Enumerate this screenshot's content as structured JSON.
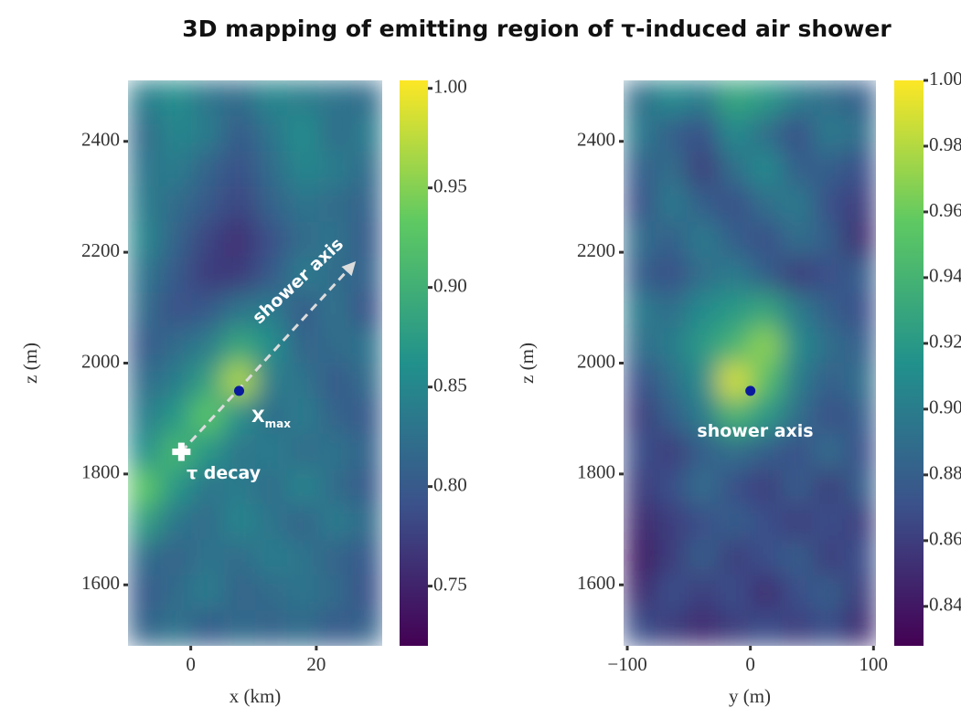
{
  "title": "3D mapping of emitting region of τ-induced air shower",
  "chart_data": [
    {
      "type": "heatmap",
      "colormap": "viridis",
      "xlabel": "x (km)",
      "ylabel": "z (m)",
      "xlim": [
        -10,
        30.5
      ],
      "ylim": [
        1490,
        2510
      ],
      "xticks": [
        0,
        20
      ],
      "yticks": [
        1600,
        1800,
        2000,
        2200,
        2400
      ],
      "z": [
        [
          0.84,
          0.86,
          0.83,
          0.82,
          0.85,
          0.84,
          0.83,
          0.82
        ],
        [
          0.82,
          0.85,
          0.84,
          0.8,
          0.83,
          0.86,
          0.82,
          0.84
        ],
        [
          0.83,
          0.84,
          0.81,
          0.79,
          0.82,
          0.85,
          0.84,
          0.82
        ],
        [
          0.84,
          0.82,
          0.8,
          0.78,
          0.81,
          0.83,
          0.82,
          0.81
        ],
        [
          0.85,
          0.81,
          0.78,
          0.76,
          0.79,
          0.82,
          0.83,
          0.8
        ],
        [
          0.83,
          0.8,
          0.77,
          0.77,
          0.8,
          0.84,
          0.82,
          0.81
        ],
        [
          0.82,
          0.79,
          0.8,
          0.83,
          0.84,
          0.8,
          0.83,
          0.79
        ],
        [
          0.8,
          0.82,
          0.84,
          0.89,
          0.86,
          0.81,
          0.82,
          0.83
        ],
        [
          0.82,
          0.84,
          0.88,
          0.97,
          0.84,
          0.83,
          0.8,
          0.82
        ],
        [
          0.84,
          0.87,
          0.93,
          0.86,
          0.82,
          0.84,
          0.81,
          0.8
        ],
        [
          0.86,
          0.91,
          0.87,
          0.83,
          0.84,
          0.82,
          0.83,
          0.81
        ],
        [
          0.93,
          0.87,
          0.83,
          0.84,
          0.82,
          0.85,
          0.82,
          0.8
        ],
        [
          0.88,
          0.83,
          0.82,
          0.85,
          0.83,
          0.81,
          0.84,
          0.82
        ],
        [
          0.82,
          0.81,
          0.83,
          0.82,
          0.84,
          0.83,
          0.81,
          0.8
        ],
        [
          0.8,
          0.82,
          0.84,
          0.81,
          0.82,
          0.83,
          0.82,
          0.79
        ],
        [
          0.81,
          0.83,
          0.8,
          0.82,
          0.81,
          0.82,
          0.8,
          0.81
        ]
      ],
      "clim": [
        0.72,
        1.004
      ],
      "cticks": [
        {
          "value": 0.75,
          "label": "0.75"
        },
        {
          "value": 0.8,
          "label": "0.80"
        },
        {
          "value": 0.85,
          "label": "0.85"
        },
        {
          "value": 0.9,
          "label": "0.90"
        },
        {
          "value": 0.95,
          "label": "0.95"
        },
        {
          "value": 1.0,
          "label": "1.00"
        }
      ],
      "points": [
        {
          "x": 7.7,
          "y": 1950,
          "marker": "dot",
          "color": "#0a1a9c"
        },
        {
          "x": -1.5,
          "y": 1840,
          "marker": "cross",
          "color": "#ffffff"
        }
      ],
      "arrow": {
        "from": [
          -1.5,
          1840
        ],
        "to": [
          26,
          2180
        ],
        "color": "#dcdcdc"
      },
      "annotations": [
        {
          "text": "shower axis"
        },
        {
          "text": "X",
          "sub": "max"
        },
        {
          "text": "τ decay"
        }
      ]
    },
    {
      "type": "heatmap",
      "colormap": "viridis",
      "xlabel": "y (m)",
      "ylabel": "z (m)",
      "xlim": [
        -103,
        102
      ],
      "ylim": [
        1490,
        2510
      ],
      "xticks": [
        {
          "value": -100,
          "label": "−100"
        },
        0,
        100
      ],
      "yticks": [
        1600,
        1800,
        2000,
        2200,
        2400
      ],
      "z": [
        [
          0.89,
          0.91,
          0.9,
          0.93,
          0.92,
          0.9,
          0.89,
          0.88
        ],
        [
          0.9,
          0.88,
          0.87,
          0.91,
          0.89,
          0.87,
          0.9,
          0.89
        ],
        [
          0.88,
          0.89,
          0.86,
          0.89,
          0.91,
          0.88,
          0.88,
          0.87
        ],
        [
          0.87,
          0.9,
          0.88,
          0.87,
          0.89,
          0.9,
          0.87,
          0.86
        ],
        [
          0.89,
          0.88,
          0.9,
          0.88,
          0.87,
          0.89,
          0.88,
          0.85
        ],
        [
          0.88,
          0.87,
          0.89,
          0.9,
          0.88,
          0.86,
          0.87,
          0.88
        ],
        [
          0.9,
          0.89,
          0.91,
          0.92,
          0.93,
          0.9,
          0.88,
          0.87
        ],
        [
          0.89,
          0.9,
          0.92,
          0.94,
          0.97,
          0.91,
          0.89,
          0.88
        ],
        [
          0.87,
          0.89,
          0.91,
          0.99,
          0.95,
          0.9,
          0.88,
          0.89
        ],
        [
          0.86,
          0.88,
          0.9,
          0.94,
          0.92,
          0.89,
          0.87,
          0.88
        ],
        [
          0.87,
          0.86,
          0.88,
          0.89,
          0.88,
          0.87,
          0.89,
          0.87
        ],
        [
          0.86,
          0.87,
          0.89,
          0.87,
          0.86,
          0.88,
          0.86,
          0.88
        ],
        [
          0.85,
          0.86,
          0.87,
          0.88,
          0.87,
          0.86,
          0.87,
          0.86
        ],
        [
          0.84,
          0.86,
          0.88,
          0.86,
          0.87,
          0.88,
          0.86,
          0.87
        ],
        [
          0.85,
          0.87,
          0.86,
          0.87,
          0.85,
          0.87,
          0.88,
          0.86
        ],
        [
          0.87,
          0.86,
          0.85,
          0.86,
          0.87,
          0.86,
          0.87,
          0.85
        ]
      ],
      "clim": [
        0.828,
        1.0
      ],
      "cticks": [
        {
          "value": 0.84,
          "label": "0.84"
        },
        {
          "value": 0.86,
          "label": "0.86"
        },
        {
          "value": 0.88,
          "label": "0.88"
        },
        {
          "value": 0.9,
          "label": "0.90"
        },
        {
          "value": 0.92,
          "label": "0.92"
        },
        {
          "value": 0.94,
          "label": "0.94"
        },
        {
          "value": 0.96,
          "label": "0.96"
        },
        {
          "value": 0.98,
          "label": "0.98"
        },
        {
          "value": 1.0,
          "label": "1.00"
        }
      ],
      "points": [
        {
          "x": 0,
          "y": 1950,
          "marker": "dot",
          "color": "#0a1a9c"
        }
      ],
      "annotations": [
        {
          "text": "shower axis"
        }
      ]
    }
  ]
}
